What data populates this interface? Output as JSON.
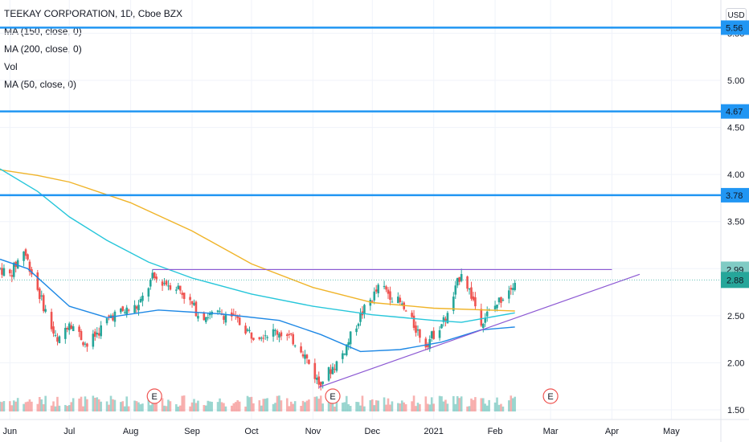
{
  "legend": {
    "title": "TEEKAY CORPORATION, 1D, Cboe BZX",
    "items": [
      "MA (150, close, 0)",
      "MA (200, close, 0)",
      "Vol",
      "MA (50, close, 0)"
    ]
  },
  "currency": "USD",
  "colors": {
    "up": "#26a69a",
    "down": "#ef5350",
    "level": "#2196f3",
    "ma150": "#26c6da",
    "ma200": "#f0b429",
    "ma50": "#1e88e5",
    "trend": "#8c58d3",
    "last_price": "#26a69a",
    "resistance_label": "#80cbc4"
  },
  "chart_data": {
    "type": "candlestick",
    "y_ticks": [
      "1.50",
      "2.00",
      "2.50",
      "3.00",
      "3.50",
      "4.00",
      "4.50",
      "5.00",
      "5.50"
    ],
    "ylim": [
      1.5,
      5.6
    ],
    "x_ticks": [
      "Jun",
      "Jul",
      "Aug",
      "Sep",
      "Oct",
      "Nov",
      "Dec",
      "2021",
      "Feb",
      "Mar",
      "Apr",
      "May"
    ],
    "x_tick_dates": [
      "2020-06-01",
      "2020-07-01",
      "2020-08-01",
      "2020-09-01",
      "2020-10-01",
      "2020-11-01",
      "2020-12-01",
      "2021-01-01",
      "2021-02-01",
      "2021-03-01",
      "2021-04-01",
      "2021-05-01"
    ],
    "xlim": [
      "2020-05-27",
      "2021-05-26"
    ],
    "horizontal_levels": [
      {
        "price": 5.56,
        "label": "5.56"
      },
      {
        "price": 4.67,
        "label": "4.67"
      },
      {
        "price": 3.78,
        "label": "3.78"
      }
    ],
    "resistance": {
      "price": 2.99,
      "label": "2.99",
      "start": "2020-08-12",
      "end": "2021-04-01"
    },
    "last_price": {
      "price": 2.88,
      "label": "2.88"
    },
    "support_trendline": [
      {
        "date": "2020-11-04",
        "price": 1.74
      },
      {
        "date": "2021-04-15",
        "price": 2.94
      }
    ],
    "earnings_markers": [
      {
        "date": "2020-08-13",
        "label": "E"
      },
      {
        "date": "2020-11-11",
        "label": "E"
      },
      {
        "date": "2021-03-01",
        "label": "E"
      }
    ],
    "ma150": [
      {
        "date": "2020-05-27",
        "value": 4.06
      },
      {
        "date": "2020-06-15",
        "value": 3.82
      },
      {
        "date": "2020-07-01",
        "value": 3.55
      },
      {
        "date": "2020-07-20",
        "value": 3.3
      },
      {
        "date": "2020-08-10",
        "value": 3.07
      },
      {
        "date": "2020-09-01",
        "value": 2.9
      },
      {
        "date": "2020-10-01",
        "value": 2.73
      },
      {
        "date": "2020-11-01",
        "value": 2.6
      },
      {
        "date": "2020-12-01",
        "value": 2.51
      },
      {
        "date": "2021-01-01",
        "value": 2.45
      },
      {
        "date": "2021-01-15",
        "value": 2.43
      },
      {
        "date": "2021-02-11",
        "value": 2.53
      }
    ],
    "ma200": [
      {
        "date": "2020-05-27",
        "value": 4.05
      },
      {
        "date": "2020-06-15",
        "value": 3.99
      },
      {
        "date": "2020-07-01",
        "value": 3.92
      },
      {
        "date": "2020-08-01",
        "value": 3.7
      },
      {
        "date": "2020-09-01",
        "value": 3.4
      },
      {
        "date": "2020-10-01",
        "value": 3.05
      },
      {
        "date": "2020-11-01",
        "value": 2.8
      },
      {
        "date": "2020-12-01",
        "value": 2.64
      },
      {
        "date": "2021-01-01",
        "value": 2.58
      },
      {
        "date": "2021-02-11",
        "value": 2.55
      }
    ],
    "ma50": [
      {
        "date": "2020-05-27",
        "value": 3.1
      },
      {
        "date": "2020-06-10",
        "value": 3.0
      },
      {
        "date": "2020-07-01",
        "value": 2.6
      },
      {
        "date": "2020-07-20",
        "value": 2.48
      },
      {
        "date": "2020-08-15",
        "value": 2.56
      },
      {
        "date": "2020-09-15",
        "value": 2.52
      },
      {
        "date": "2020-10-15",
        "value": 2.45
      },
      {
        "date": "2020-11-05",
        "value": 2.3
      },
      {
        "date": "2020-11-25",
        "value": 2.12
      },
      {
        "date": "2020-12-15",
        "value": 2.14
      },
      {
        "date": "2021-01-05",
        "value": 2.22
      },
      {
        "date": "2021-01-25",
        "value": 2.35
      },
      {
        "date": "2021-02-11",
        "value": 2.38
      }
    ],
    "price_path": [
      {
        "date": "2020-05-27",
        "value": 3.0
      },
      {
        "date": "2020-06-01",
        "value": 2.93
      },
      {
        "date": "2020-06-08",
        "value": 3.2
      },
      {
        "date": "2020-06-15",
        "value": 2.78
      },
      {
        "date": "2020-06-25",
        "value": 2.2
      },
      {
        "date": "2020-07-01",
        "value": 2.45
      },
      {
        "date": "2020-07-10",
        "value": 2.18
      },
      {
        "date": "2020-07-22",
        "value": 2.5
      },
      {
        "date": "2020-08-05",
        "value": 2.6
      },
      {
        "date": "2020-08-12",
        "value": 2.9
      },
      {
        "date": "2020-08-25",
        "value": 2.8
      },
      {
        "date": "2020-09-05",
        "value": 2.5
      },
      {
        "date": "2020-09-20",
        "value": 2.52
      },
      {
        "date": "2020-10-01",
        "value": 2.3
      },
      {
        "date": "2020-10-15",
        "value": 2.33
      },
      {
        "date": "2020-10-25",
        "value": 2.2
      },
      {
        "date": "2020-11-04",
        "value": 1.78
      },
      {
        "date": "2020-11-15",
        "value": 2.05
      },
      {
        "date": "2020-11-25",
        "value": 2.5
      },
      {
        "date": "2020-12-05",
        "value": 2.82
      },
      {
        "date": "2020-12-15",
        "value": 2.63
      },
      {
        "date": "2020-12-28",
        "value": 2.2
      },
      {
        "date": "2021-01-08",
        "value": 2.5
      },
      {
        "date": "2021-01-15",
        "value": 2.98
      },
      {
        "date": "2021-01-25",
        "value": 2.45
      },
      {
        "date": "2021-02-01",
        "value": 2.6
      },
      {
        "date": "2021-02-11",
        "value": 2.88
      }
    ]
  }
}
